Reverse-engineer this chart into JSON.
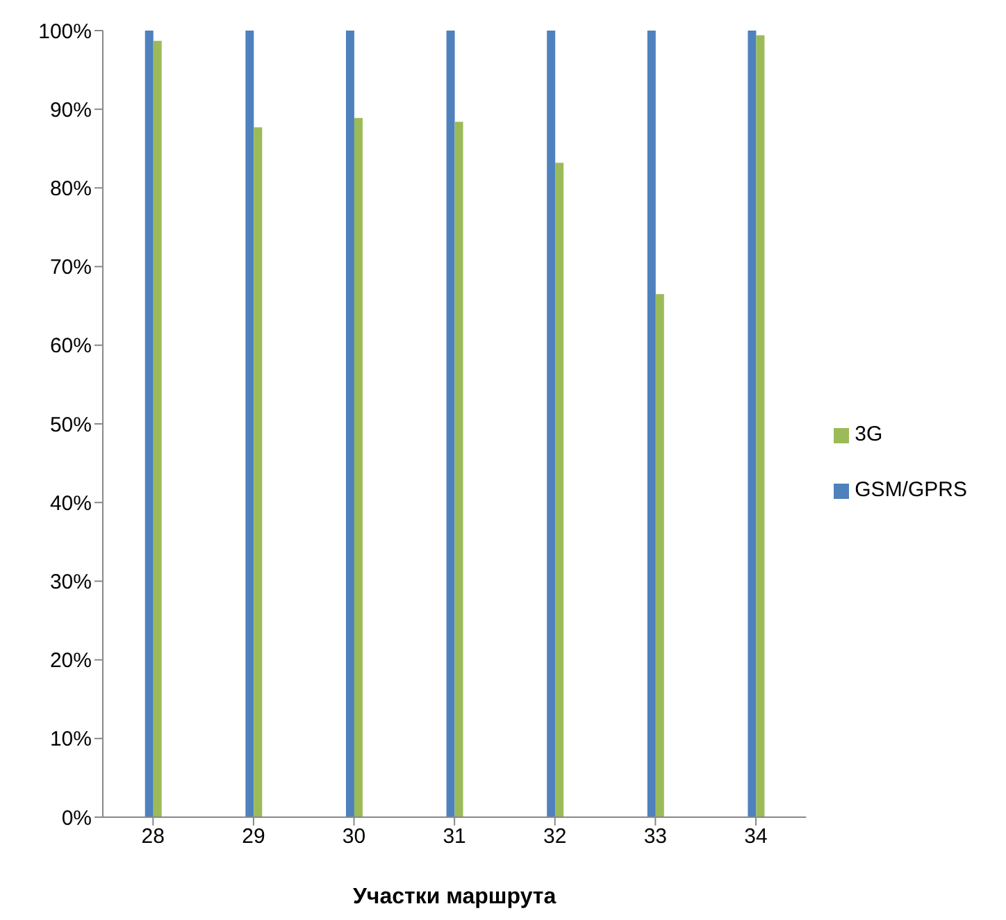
{
  "chart_data": {
    "type": "bar",
    "xlabel": "Участки маршрута",
    "categories": [
      "28",
      "29",
      "30",
      "31",
      "32",
      "33",
      "34"
    ],
    "series": [
      {
        "name": "GSM/GPRS",
        "color": "#4f81bd",
        "values": [
          100,
          100,
          100,
          100,
          100,
          100,
          100
        ]
      },
      {
        "name": "3G",
        "color": "#9bbb59",
        "values": [
          98.7,
          87.7,
          88.9,
          88.4,
          83.2,
          66.5,
          99.4
        ]
      }
    ],
    "ylim": [
      0,
      100
    ],
    "yticks": [
      {
        "value": 0,
        "label": "0%"
      },
      {
        "value": 10,
        "label": "10%"
      },
      {
        "value": 20,
        "label": "20%"
      },
      {
        "value": 30,
        "label": "30%"
      },
      {
        "value": 40,
        "label": "40%"
      },
      {
        "value": 50,
        "label": "50%"
      },
      {
        "value": 60,
        "label": "60%"
      },
      {
        "value": 70,
        "label": "70%"
      },
      {
        "value": 80,
        "label": "80%"
      },
      {
        "value": 90,
        "label": "90%"
      },
      {
        "value": 100,
        "label": "100%"
      }
    ],
    "legend": "right"
  }
}
